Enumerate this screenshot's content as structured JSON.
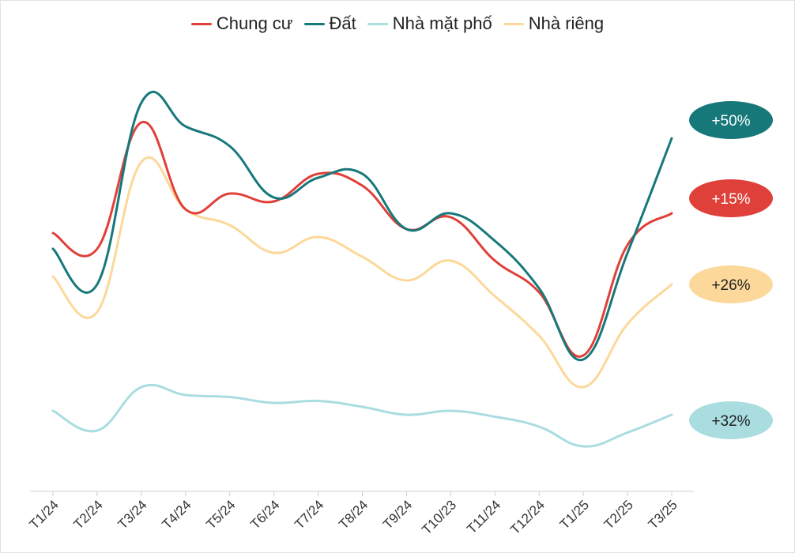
{
  "chart_data": {
    "type": "line",
    "title": "",
    "xlabel": "",
    "ylabel": "",
    "categories": [
      "T1/24",
      "T2/24",
      "T3/24",
      "T4/24",
      "T5/24",
      "T6/24",
      "T7/24",
      "T8/24",
      "T9/24",
      "T10/23",
      "T11/24",
      "T12/24",
      "T1/25",
      "T2/25",
      "T3/25"
    ],
    "ylim": [
      0,
      100
    ],
    "yaxis_visible": false,
    "grid": false,
    "legend_position": "top-center",
    "series": [
      {
        "name": "Chung cư",
        "color": "#e0403a",
        "values": [
          62,
          58,
          90,
          68,
          72,
          70,
          77,
          74,
          63,
          66,
          55,
          47,
          31,
          59,
          67
        ],
        "end_label": "+15%"
      },
      {
        "name": "Đất",
        "color": "#17787a",
        "values": [
          58,
          49,
          95,
          89,
          84,
          71,
          76,
          77,
          63,
          67,
          60,
          48,
          30,
          57,
          86
        ],
        "end_label": "+50%"
      },
      {
        "name": "Nhà mặt phố",
        "color": "#a9dde0",
        "values": [
          17,
          12,
          23,
          21,
          20.5,
          19,
          19.5,
          18,
          16,
          17,
          15.5,
          13,
          8,
          11.5,
          16
        ],
        "end_label": "+32%"
      },
      {
        "name": "Nhà riêng",
        "color": "#fcd89a",
        "values": [
          51,
          42,
          80,
          68,
          64,
          57,
          61,
          56,
          50,
          55,
          46,
          36,
          23,
          39,
          49
        ],
        "end_label": "+26%"
      }
    ]
  }
}
